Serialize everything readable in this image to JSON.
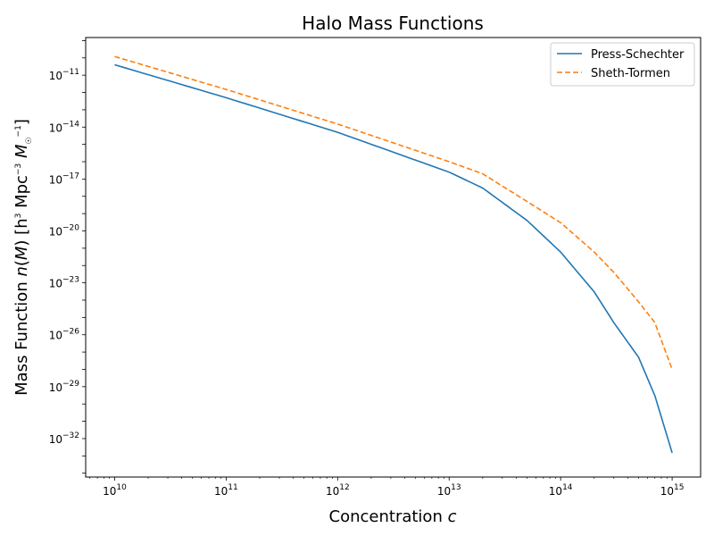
{
  "chart_data": {
    "type": "line",
    "title": "Halo Mass Functions",
    "xlabel": "Concentration c",
    "ylabel": "Mass Function n(M) [h³ Mpc⁻³ M☉⁻¹]",
    "xscale": "log",
    "yscale": "log",
    "xlim": [
      5500000000.0,
      1800000000000000.0
    ],
    "ylim": [
      6e-35,
      1.5e-09
    ],
    "grid": false,
    "legend_position": "top-right",
    "x_ticks": [
      10,
      11,
      12,
      13,
      14,
      15
    ],
    "y_ticks": [
      -11,
      -14,
      -17,
      -20,
      -23,
      -26,
      -29,
      -32
    ],
    "x": [
      10000000000.0,
      100000000000.0,
      1000000000000.0,
      10000000000000.0,
      20000000000000.0,
      50000000000000.0,
      100000000000000.0,
      200000000000000.0,
      300000000000000.0,
      500000000000000.0,
      700000000000000.0,
      1000000000000000.0
    ],
    "series": [
      {
        "name": "Press-Schechter",
        "color": "#1f77b4",
        "dash": "solid",
        "values": [
          4e-11,
          5e-13,
          5e-15,
          2.5e-17,
          3e-18,
          4e-20,
          6e-22,
          3e-24,
          5e-26,
          5e-28,
          3e-30,
          1.5e-33
        ]
      },
      {
        "name": "Sheth-Tormen",
        "color": "#ff7f0e",
        "dash": "dashed",
        "values": [
          1.2e-10,
          1.5e-12,
          1.5e-14,
          1e-16,
          2e-17,
          5e-19,
          3e-20,
          6e-22,
          4e-23,
          8e-25,
          5e-26,
          1e-28
        ]
      }
    ]
  }
}
